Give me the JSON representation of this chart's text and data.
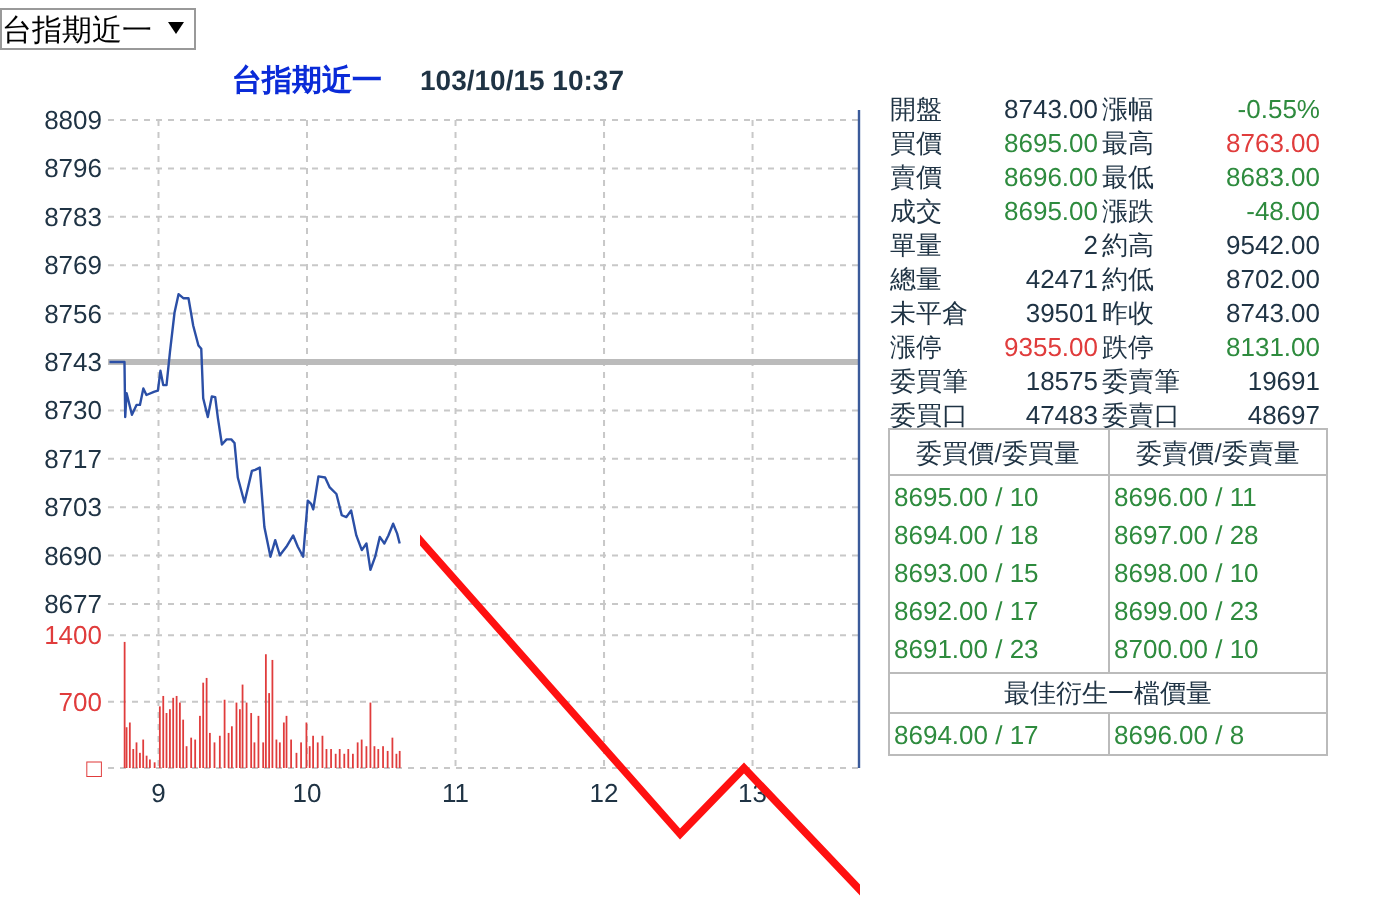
{
  "chart_data": [
    {
      "type": "line",
      "title": "台指期近一",
      "subtitle": "103/10/15 10:37",
      "annotations": [
        "台指期近一"
      ],
      "x": [
        8.67,
        8.771,
        8.776,
        8.785,
        8.821,
        8.852,
        8.875,
        8.898,
        8.919,
        8.973,
        8.996,
        9.013,
        9.032,
        9.054,
        9.077,
        9.108,
        9.135,
        9.167,
        9.202,
        9.234,
        9.269,
        9.288,
        9.301,
        9.332,
        9.359,
        9.382,
        9.4,
        9.427,
        9.458,
        9.49,
        9.512,
        9.534,
        9.579,
        9.629,
        9.651,
        9.682,
        9.713,
        9.754,
        9.786,
        9.817,
        9.861,
        9.907,
        9.938,
        9.974,
        10.005,
        10.028,
        10.042,
        10.077,
        10.122,
        10.153,
        10.198,
        10.234,
        10.265,
        10.297,
        10.332,
        10.369,
        10.4,
        10.427,
        10.459,
        10.49,
        10.521,
        10.548,
        10.58,
        10.607,
        10.624
      ],
      "series": [
        {
          "color": "#2b4fa6",
          "values": [
            8743,
            8743,
            8728,
            8734.5,
            8728.6,
            8731.3,
            8731.3,
            8735.8,
            8734,
            8734.9,
            8735.2,
            8740.6,
            8736.7,
            8736.7,
            8745.7,
            8756.5,
            8761.5,
            8760.4,
            8760.4,
            8752.9,
            8747.5,
            8746.6,
            8733.1,
            8728,
            8733.6,
            8733.4,
            8727.7,
            8720.5,
            8721.9,
            8721.9,
            8720.9,
            8711.5,
            8704.7,
            8713.3,
            8713.6,
            8714.2,
            8698,
            8689.9,
            8694.4,
            8690.3,
            8692.6,
            8695.7,
            8692.6,
            8689.9,
            8705.2,
            8704.3,
            8702.8,
            8711.8,
            8711.5,
            8708.8,
            8707,
            8701.2,
            8700.7,
            8702.5,
            8695.7,
            8691.7,
            8693.5,
            8686.3,
            8689.9,
            8695.3,
            8693.5,
            8695.7,
            8698.9,
            8696.2,
            8693.5
          ]
        }
      ],
      "xlim": [
        8.66,
        13.71
      ],
      "xticks": [
        9,
        10,
        11,
        12,
        13
      ],
      "ylim": [
        8677,
        8809
      ],
      "yticks": [
        8809,
        {
          "value": 8795.8,
          "label": "8796"
        },
        {
          "value": 8782.6,
          "label": "8783"
        },
        {
          "value": 8769.4,
          "label": "8769"
        },
        {
          "value": 8756.2,
          "label": "8756"
        },
        8743,
        {
          "value": 8729.8,
          "label": "8730"
        },
        {
          "value": 8716.6,
          "label": "8717"
        },
        {
          "value": 8703.4,
          "label": "8703"
        },
        {
          "value": 8690.2,
          "label": "8690"
        },
        8677
      ],
      "ref_lines": [
        {
          "axis": "y",
          "value": 8743,
          "color": "#bbbbbb"
        }
      ],
      "grid": true,
      "tick_labels": "y"
    },
    {
      "type": "bar",
      "x": [
        8.772,
        8.785,
        8.807,
        8.83,
        8.852,
        8.875,
        8.897,
        8.92,
        8.942,
        8.974,
        9.009,
        9.032,
        9.054,
        9.077,
        9.099,
        9.122,
        9.144,
        9.166,
        9.189,
        9.22,
        9.247,
        9.279,
        9.301,
        9.324,
        9.346,
        9.377,
        9.413,
        9.445,
        9.472,
        9.494,
        9.525,
        9.548,
        9.566,
        9.593,
        9.624,
        9.646,
        9.673,
        9.705,
        9.723,
        9.745,
        9.767,
        9.794,
        9.817,
        9.844,
        9.862,
        9.893,
        9.929,
        9.96,
        9.996,
        10.018,
        10.041,
        10.072,
        10.104,
        10.131,
        10.162,
        10.193,
        10.22,
        10.251,
        10.278,
        10.309,
        10.341,
        10.368,
        10.4,
        10.427,
        10.454,
        10.48,
        10.512,
        10.543,
        10.575,
        10.602,
        10.624
      ],
      "values": [
        1330,
        430,
        480,
        200,
        270,
        160,
        300,
        130,
        90,
        60,
        650,
        760,
        580,
        620,
        740,
        760,
        690,
        510,
        230,
        320,
        300,
        550,
        900,
        950,
        370,
        270,
        340,
        720,
        370,
        440,
        690,
        620,
        880,
        690,
        580,
        270,
        550,
        270,
        1200,
        790,
        1140,
        300,
        270,
        480,
        550,
        300,
        160,
        270,
        480,
        230,
        340,
        270,
        340,
        200,
        200,
        150,
        200,
        150,
        200,
        150,
        270,
        300,
        230,
        690,
        230,
        200,
        230,
        180,
        320,
        150,
        180
      ],
      "color": "#e03c3c",
      "xlim": [
        8.66,
        13.71
      ],
      "xticks": [
        9,
        10,
        11,
        12,
        13
      ],
      "ylim": [
        0,
        1730
      ],
      "yticks": [
        {
          "value": 0,
          "label": "□"
        },
        700,
        1400
      ],
      "grid": true
    },
    {
      "type": "other",
      "annotations": [
        "開盤",
        "8743.00",
        "漲幅",
        "-0.55%",
        "買價",
        "8695.00",
        "最高",
        "8763.00",
        "賣價",
        "8696.00",
        "最低",
        "8683.00",
        "成交",
        "8695.00",
        "漲跌",
        "-48.00",
        "單量",
        "2",
        "約高",
        "9542.00",
        "總量",
        "42471",
        "約低",
        "8702.00",
        "未平倉",
        "39501",
        "昨收",
        "8743.00",
        "漲停",
        "9355.00",
        "跌停",
        "8131.00",
        "委買筆",
        "18575",
        "委賣筆",
        "19691",
        "委買口",
        "47483",
        "委賣口",
        "48697",
        "委買價/委買量",
        "委賣價/委賣量",
        "8695.00 / 10",
        "8696.00 / 11",
        "8694.00 / 18",
        "8697.00 / 28",
        "8693.00 / 15",
        "8698.00 / 10",
        "8692.00 / 17",
        "8699.00 / 23",
        "8691.00 / 23",
        "8700.00 / 10",
        "最佳衍生一檔價量",
        "8694.00 / 17",
        "8696.00 / 8"
      ],
      "colors": [
        "#1f3344",
        "#1f3344",
        "#1f3344",
        "#2e8b3e",
        "#1f3344",
        "#2e8b3e",
        "#1f3344",
        "#e03c3c",
        "#1f3344",
        "#2e8b3e",
        "#1f3344",
        "#2e8b3e",
        "#1f3344",
        "#2e8b3e",
        "#1f3344",
        "#2e8b3e",
        "#1f3344",
        "#1f3344",
        "#1f3344",
        "#1f3344",
        "#1f3344",
        "#1f3344",
        "#1f3344",
        "#1f3344",
        "#1f3344",
        "#1f3344",
        "#1f3344",
        "#1f3344",
        "#1f3344",
        "#e03c3c",
        "#1f3344",
        "#2e8b3e",
        "#1f3344",
        "#1f3344",
        "#1f3344",
        "#1f3344",
        "#1f3344",
        "#1f3344",
        "#1f3344",
        "#1f3344",
        "#1f3344",
        "#1f3344",
        "#2e8b3e",
        "#2e8b3e",
        "#2e8b3e",
        "#2e8b3e",
        "#2e8b3e",
        "#2e8b3e",
        "#2e8b3e",
        "#2e8b3e",
        "#2e8b3e",
        "#2e8b3e",
        "#1f3344",
        "#2e8b3e",
        "#2e8b3e"
      ]
    }
  ]
}
